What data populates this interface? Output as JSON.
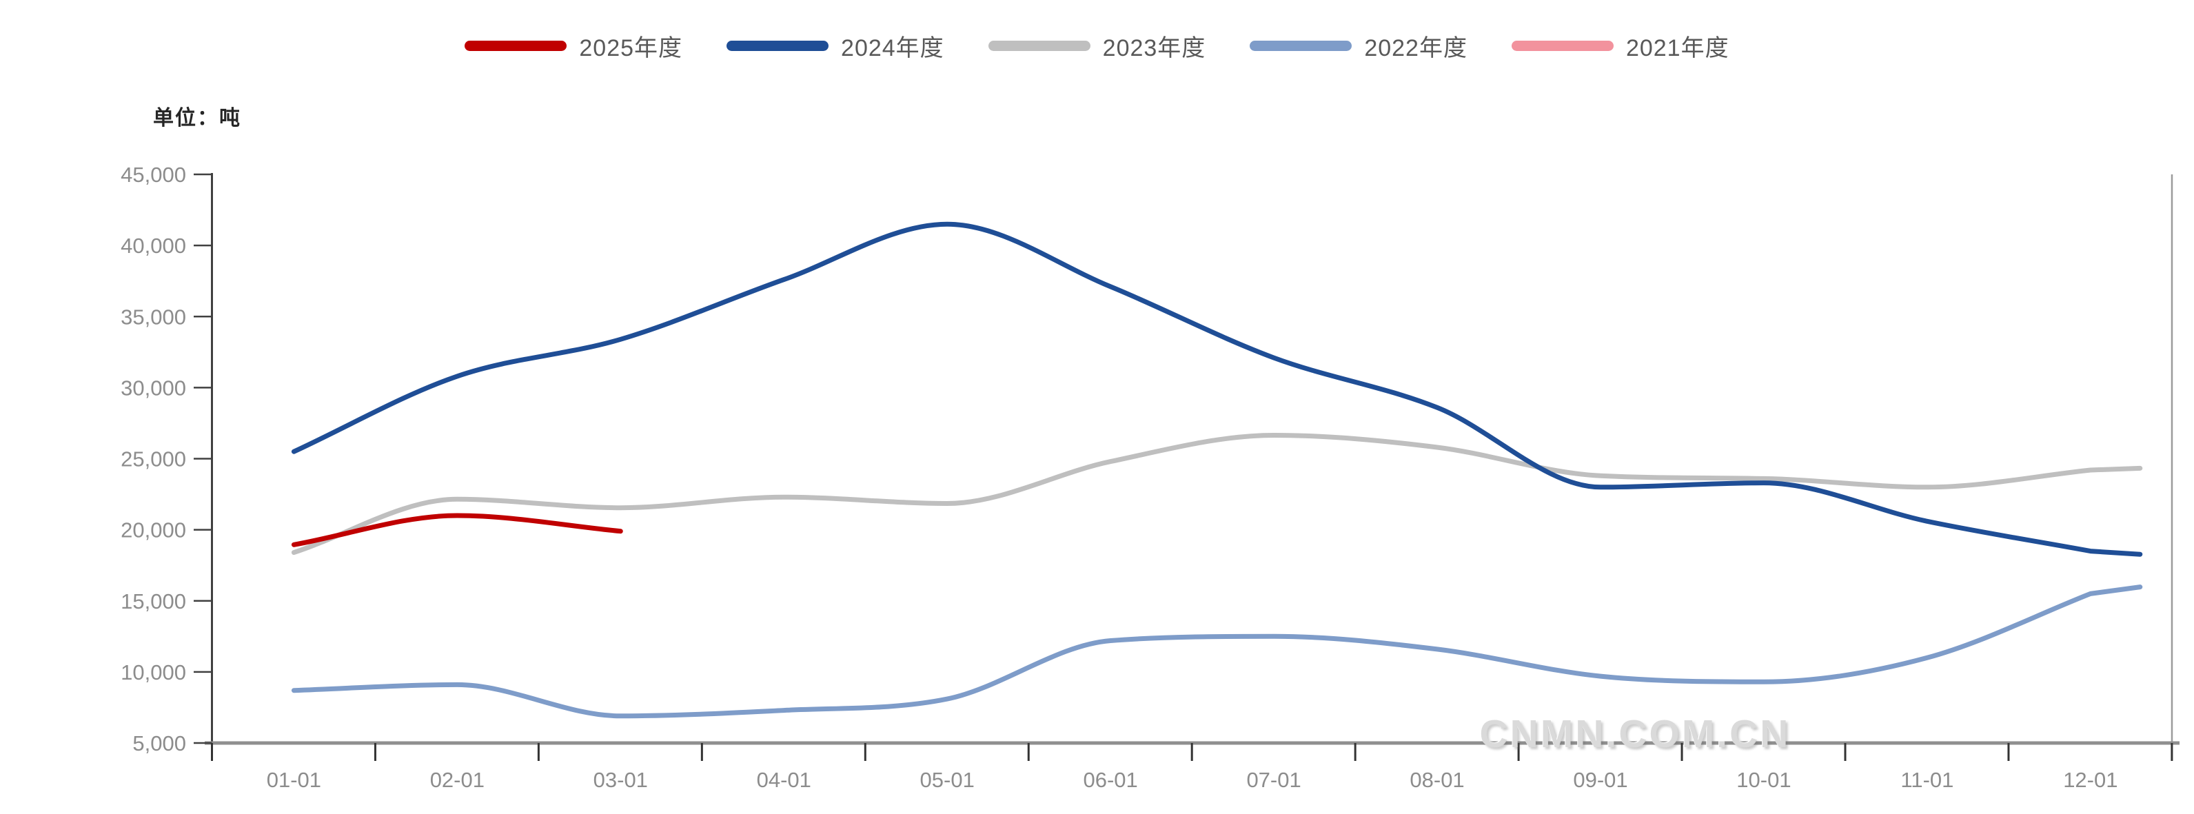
{
  "unit_label": "单位：吨",
  "watermark": "CNMN.COM.CN",
  "legend": {
    "items": [
      {
        "label": "2025年度",
        "color": "#C00000"
      },
      {
        "label": "2024年度",
        "color": "#1F4E96"
      },
      {
        "label": "2023年度",
        "color": "#BFBFBF"
      },
      {
        "label": "2022年度",
        "color": "#7E9CC9"
      },
      {
        "label": "2021年度",
        "color": "#F2929D"
      }
    ]
  },
  "axis": {
    "y_tick_labels": [
      "5,000",
      "10,000",
      "15,000",
      "20,000",
      "25,000",
      "30,000",
      "35,000",
      "40,000",
      "45,000"
    ],
    "x_tick_labels": [
      "01-01",
      "02-01",
      "03-01",
      "04-01",
      "05-01",
      "06-01",
      "07-01",
      "08-01",
      "09-01",
      "10-01",
      "11-01",
      "12-01"
    ]
  },
  "chart_data": {
    "type": "line",
    "title": "",
    "xlabel": "",
    "ylabel": "单位：吨",
    "ylim": [
      5000,
      45000
    ],
    "ytick_step": 5000,
    "grid": false,
    "legend_position": "top",
    "x": [
      "01-01",
      "02-01",
      "03-01",
      "04-01",
      "05-01",
      "06-01",
      "07-01",
      "08-01",
      "09-01",
      "10-01",
      "11-01",
      "12-01"
    ],
    "series": [
      {
        "name": "2025年度",
        "color": "#C00000",
        "values": [
          18950,
          21000,
          19900
        ]
      },
      {
        "name": "2024年度",
        "color": "#1F4E96",
        "values": [
          25500,
          30800,
          33400,
          37600,
          41500,
          37100,
          32100,
          28600,
          23000,
          23300,
          20600,
          18500
        ]
      },
      {
        "name": "2023年度",
        "color": "#BFBFBF",
        "values": [
          18400,
          22150,
          21550,
          22300,
          21850,
          24800,
          26650,
          25800,
          23800,
          23600,
          23000,
          24200
        ]
      },
      {
        "name": "2022年度",
        "color": "#7E9CC9",
        "values": [
          8700,
          9100,
          6900,
          7300,
          8100,
          12200,
          12500,
          11600,
          9700,
          9300,
          11000,
          15500
        ]
      },
      {
        "name": "2021年度",
        "color": "#F2929D",
        "values": []
      }
    ]
  }
}
